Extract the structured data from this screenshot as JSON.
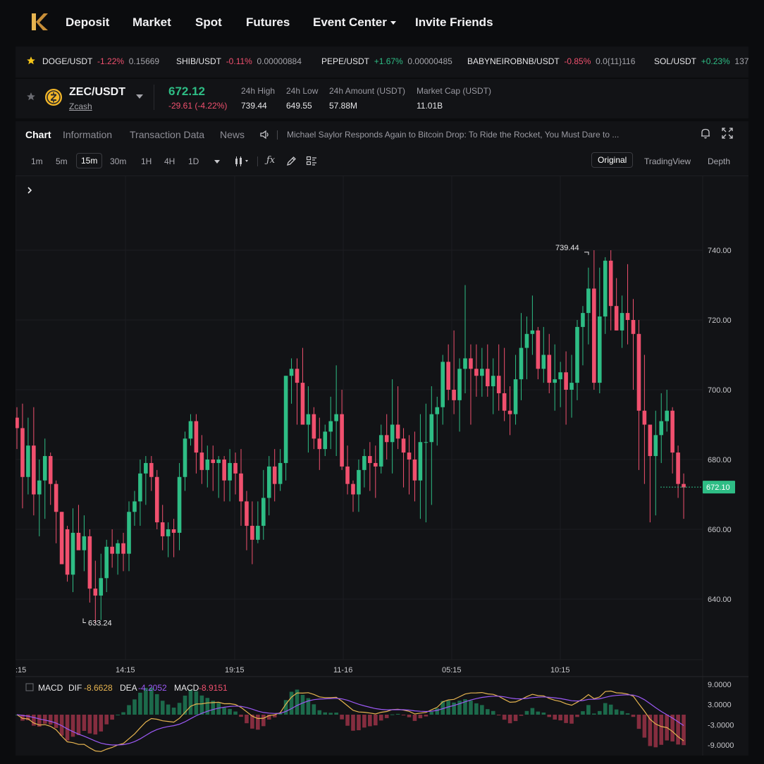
{
  "nav": {
    "items": [
      "Deposit",
      "Market",
      "Spot",
      "Futures",
      "Event Center",
      "Invite Friends"
    ]
  },
  "ticker": [
    {
      "symbol": "DOGE/USDT",
      "change": "-1.22%",
      "price": "0.15669",
      "dir": "down"
    },
    {
      "symbol": "SHIB/USDT",
      "change": "-0.11%",
      "price": "0.00000884",
      "dir": "down"
    },
    {
      "symbol": "PEPE/USDT",
      "change": "+1.67%",
      "price": "0.00000485",
      "dir": "up"
    },
    {
      "symbol": "BABYNEIROBNB/USDT",
      "change": "-0.85%",
      "price": "0.0{11}116",
      "dir": "down"
    },
    {
      "symbol": "SOL/USDT",
      "change": "+0.23%",
      "price": "137",
      "dir": "up"
    }
  ],
  "pair": {
    "symbol": "ZEC/USDT",
    "name": "Zcash",
    "price": "672.12",
    "change": "-29.61 (-4.22%)",
    "stats": [
      {
        "label": "24h High",
        "value": "739.44"
      },
      {
        "label": "24h Low",
        "value": "649.55"
      },
      {
        "label": "24h Amount (USDT)",
        "value": "57.88M"
      },
      {
        "label": "Market Cap (USDT)",
        "value": "11.01B"
      }
    ]
  },
  "chart_tabs": [
    "Chart",
    "Information",
    "Transaction Data",
    "News"
  ],
  "news_headline": "Michael Saylor Responds Again to Bitcoin Drop: To Ride the Rocket, You Must Dare to ...",
  "timeframes": [
    "1m",
    "5m",
    "15m",
    "30m",
    "1H",
    "4H",
    "1D"
  ],
  "active_timeframe": "15m",
  "views": [
    "Original",
    "TradingView",
    "Depth"
  ],
  "active_view": "Original",
  "colors": {
    "up": "#2ebd85",
    "down": "#f0506e",
    "accent": "#e6b450"
  },
  "chart_data": {
    "type": "candlestick",
    "y_ticks": [
      "740.00",
      "720.00",
      "700.00",
      "680.00",
      "660.00",
      "640.00"
    ],
    "x_ticks": [
      ":15",
      "14:15",
      "19:15",
      "11-16",
      "05:15",
      "10:15"
    ],
    "ylim": [
      622,
      765
    ],
    "high_marker": "739.44",
    "low_marker": "633.24",
    "last_price": "672.10",
    "candles_ohlc": [
      [
        692,
        695,
        683,
        689
      ],
      [
        689,
        696,
        666,
        675
      ],
      [
        675,
        692,
        670,
        684
      ],
      [
        684,
        695,
        664,
        670
      ],
      [
        670,
        680,
        658,
        674
      ],
      [
        674,
        686,
        663,
        681
      ],
      [
        681,
        682,
        667,
        673
      ],
      [
        673,
        674,
        656,
        665
      ],
      [
        665,
        665,
        651,
        650
      ],
      [
        660,
        661,
        645,
        647
      ],
      [
        647,
        666,
        642,
        659
      ],
      [
        659,
        667,
        655,
        654
      ],
      [
        654,
        664,
        648,
        658
      ],
      [
        658,
        660,
        639,
        643
      ],
      [
        643,
        651,
        633,
        641
      ],
      [
        641,
        653,
        634,
        646
      ],
      [
        646,
        657,
        642,
        655
      ],
      [
        655,
        660,
        649,
        653
      ],
      [
        653,
        657,
        647,
        656
      ],
      [
        656,
        659,
        648,
        653
      ],
      [
        653,
        668,
        648,
        665
      ],
      [
        665,
        671,
        661,
        668
      ],
      [
        668,
        680,
        661,
        676
      ],
      [
        676,
        681,
        667,
        679
      ],
      [
        679,
        681,
        671,
        675
      ],
      [
        675,
        677,
        660,
        662
      ],
      [
        662,
        667,
        654,
        658
      ],
      [
        658,
        662,
        652,
        660
      ],
      [
        660,
        663,
        652,
        659
      ],
      [
        659,
        679,
        654,
        675
      ],
      [
        675,
        688,
        671,
        686
      ],
      [
        686,
        693,
        684,
        691
      ],
      [
        691,
        693,
        676,
        682
      ],
      [
        682,
        687,
        673,
        677
      ],
      [
        677,
        684,
        672,
        680
      ],
      [
        680,
        684,
        671,
        679
      ],
      [
        679,
        681,
        669,
        680
      ],
      [
        680,
        681,
        668,
        674
      ],
      [
        674,
        683,
        668,
        679
      ],
      [
        679,
        682,
        670,
        676
      ],
      [
        676,
        683,
        661,
        668
      ],
      [
        668,
        671,
        654,
        661
      ],
      [
        661,
        668,
        650,
        657
      ],
      [
        657,
        668,
        656,
        661
      ],
      [
        661,
        677,
        657,
        669
      ],
      [
        669,
        681,
        664,
        678
      ],
      [
        678,
        683,
        668,
        673
      ],
      [
        673,
        683,
        671,
        679
      ],
      [
        679,
        704,
        674,
        704
      ],
      [
        704,
        709,
        696,
        706
      ],
      [
        706,
        709,
        690,
        702
      ],
      [
        702,
        712,
        693,
        690
      ],
      [
        690,
        701,
        682,
        693
      ],
      [
        693,
        695,
        683,
        686
      ],
      [
        686,
        692,
        677,
        683
      ],
      [
        683,
        690,
        681,
        688
      ],
      [
        688,
        698,
        683,
        691
      ],
      [
        691,
        707,
        681,
        693
      ],
      [
        693,
        700,
        677,
        678
      ],
      [
        678,
        684,
        670,
        673
      ],
      [
        673,
        674,
        665,
        670
      ],
      [
        670,
        680,
        665,
        677
      ],
      [
        677,
        683,
        672,
        681
      ],
      [
        681,
        685,
        671,
        679
      ],
      [
        679,
        684,
        669,
        678
      ],
      [
        678,
        690,
        676,
        687
      ],
      [
        687,
        693,
        680,
        685
      ],
      [
        685,
        703,
        676,
        690
      ],
      [
        690,
        701,
        683,
        686
      ],
      [
        686,
        689,
        672,
        682
      ],
      [
        682,
        687,
        670,
        680
      ],
      [
        680,
        688,
        668,
        674
      ],
      [
        674,
        693,
        663,
        685
      ],
      [
        685,
        696,
        662,
        685
      ],
      [
        685,
        701,
        667,
        693
      ],
      [
        693,
        698,
        684,
        695
      ],
      [
        695,
        710,
        690,
        708
      ],
      [
        708,
        713,
        697,
        700
      ],
      [
        700,
        717,
        693,
        697
      ],
      [
        697,
        709,
        688,
        706
      ],
      [
        706,
        730,
        699,
        709
      ],
      [
        709,
        713,
        690,
        706
      ],
      [
        706,
        713,
        698,
        704
      ],
      [
        704,
        712,
        698,
        706
      ],
      [
        706,
        713,
        698,
        701
      ],
      [
        701,
        709,
        693,
        704
      ],
      [
        704,
        713,
        694,
        699
      ],
      [
        699,
        712,
        691,
        694
      ],
      [
        694,
        701,
        687,
        693
      ],
      [
        693,
        710,
        690,
        703
      ],
      [
        703,
        722,
        697,
        712
      ],
      [
        712,
        721,
        703,
        716
      ],
      [
        716,
        727,
        710,
        717
      ],
      [
        717,
        718,
        703,
        706
      ],
      [
        706,
        718,
        702,
        710
      ],
      [
        710,
        716,
        699,
        702
      ],
      [
        702,
        713,
        694,
        703
      ],
      [
        703,
        708,
        695,
        705
      ],
      [
        705,
        711,
        690,
        700
      ],
      [
        700,
        710,
        692,
        702
      ],
      [
        702,
        720,
        697,
        718
      ],
      [
        718,
        724,
        707,
        722
      ],
      [
        722,
        735,
        713,
        729
      ],
      [
        729,
        740,
        700,
        702
      ],
      [
        702,
        735,
        699,
        721
      ],
      [
        721,
        738,
        716,
        737
      ],
      [
        737,
        740,
        717,
        724
      ],
      [
        724,
        732,
        717,
        717
      ],
      [
        717,
        727,
        712,
        722
      ],
      [
        722,
        736,
        713,
        720
      ],
      [
        720,
        726,
        700,
        716
      ],
      [
        716,
        720,
        677,
        694
      ],
      [
        694,
        710,
        673,
        690
      ],
      [
        690,
        690,
        662,
        681
      ],
      [
        681,
        694,
        664,
        687
      ],
      [
        687,
        699,
        679,
        691
      ],
      [
        691,
        700,
        688,
        694
      ],
      [
        694,
        695,
        676,
        682
      ],
      [
        682,
        684,
        669,
        673
      ],
      [
        673,
        676,
        663,
        672
      ]
    ],
    "macd": {
      "label": "MACD",
      "dif_label": "DIF",
      "dif": "-8.6628",
      "dea_label": "DEA",
      "dea": "-4.2052",
      "macd_label": "MACD",
      "macd": "-8.9151",
      "y_ticks": [
        "9.0000",
        "3.0000",
        "-3.0000",
        "-9.0000"
      ]
    }
  }
}
